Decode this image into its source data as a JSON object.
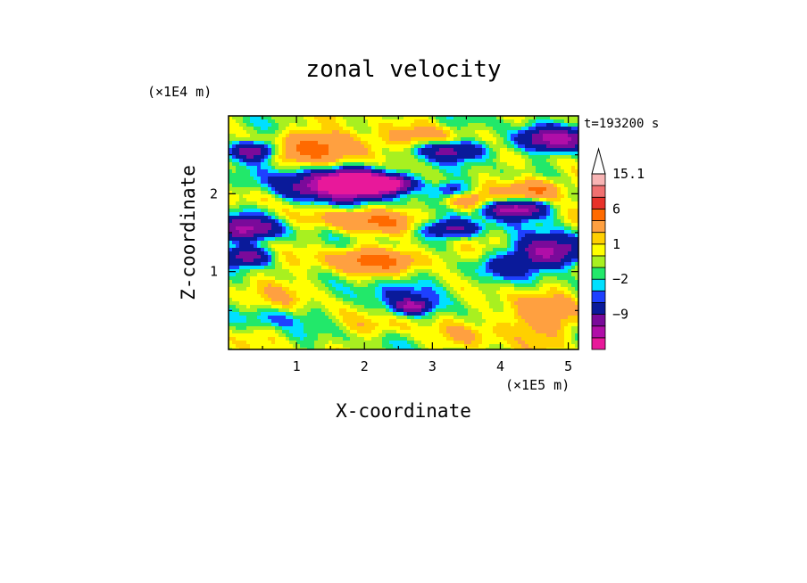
{
  "chart_data": {
    "type": "heatmap",
    "title": "zonal velocity",
    "xlabel": "X-coordinate",
    "ylabel": "Z-coordinate",
    "x_unit": "(×1E5 m)",
    "y_unit": "(×1E4 m)",
    "time_label": "t=193200 s",
    "xlim": [
      0,
      5.15
    ],
    "ylim": [
      0,
      3.0
    ],
    "x_ticks": [
      1,
      2,
      3,
      4,
      5
    ],
    "y_ticks": [
      1,
      2
    ],
    "x_tick_labels": [
      "1",
      "2",
      "3",
      "4",
      "5"
    ],
    "y_tick_labels": [
      "1",
      "2"
    ],
    "colorbar": {
      "levels": [
        -15,
        -12,
        -9,
        -6,
        -3,
        -2,
        -1,
        0,
        1,
        2,
        3,
        6,
        9,
        12,
        15.1
      ],
      "colors": [
        "#e8189a",
        "#b00ea8",
        "#7a0a9a",
        "#0a1a9a",
        "#1e40ff",
        "#00e0ff",
        "#22e86a",
        "#a8f020",
        "#ffff00",
        "#ffd000",
        "#ffa040",
        "#ff6a00",
        "#e8322a",
        "#f07070",
        "#f8b4b4"
      ],
      "labels": [
        "15.1",
        "6",
        "1",
        "−2",
        "−9"
      ],
      "label_values": [
        15.1,
        6,
        1,
        -2,
        -9
      ]
    },
    "features": [
      {
        "x": 1.55,
        "z": 2.1,
        "rx": 0.8,
        "rz": 0.2,
        "v": -11
      },
      {
        "x": 2.35,
        "z": 2.12,
        "rx": 0.35,
        "rz": 0.1,
        "v": -13
      },
      {
        "x": 1.9,
        "z": 2.15,
        "rx": 0.45,
        "rz": 0.14,
        "v": -14
      },
      {
        "x": 0.35,
        "z": 2.55,
        "rx": 0.35,
        "rz": 0.12,
        "v": -10
      },
      {
        "x": 0.3,
        "z": 1.55,
        "rx": 0.5,
        "rz": 0.15,
        "v": -10
      },
      {
        "x": 0.3,
        "z": 1.2,
        "rx": 0.35,
        "rz": 0.12,
        "v": -8
      },
      {
        "x": 3.3,
        "z": 1.55,
        "rx": 0.45,
        "rz": 0.12,
        "v": -8
      },
      {
        "x": 4.2,
        "z": 1.8,
        "rx": 0.45,
        "rz": 0.12,
        "v": -12
      },
      {
        "x": 4.75,
        "z": 1.25,
        "rx": 0.5,
        "rz": 0.2,
        "v": -11
      },
      {
        "x": 4.8,
        "z": 2.7,
        "rx": 0.55,
        "rz": 0.15,
        "v": -10
      },
      {
        "x": 3.3,
        "z": 2.55,
        "rx": 0.55,
        "rz": 0.12,
        "v": -7
      },
      {
        "x": 4.0,
        "z": 1.05,
        "rx": 0.4,
        "rz": 0.15,
        "v": -4
      },
      {
        "x": 2.6,
        "z": 0.7,
        "rx": 0.8,
        "rz": 0.22,
        "v": -3
      },
      {
        "x": 2.7,
        "z": 0.55,
        "rx": 0.25,
        "rz": 0.08,
        "v": -8
      },
      {
        "x": 0.6,
        "z": 0.4,
        "rx": 0.5,
        "rz": 0.12,
        "v": -2.5
      },
      {
        "x": 3.3,
        "z": 2.05,
        "rx": 0.25,
        "rz": 0.1,
        "v": -5
      },
      {
        "x": 1.4,
        "z": 2.6,
        "rx": 0.85,
        "rz": 0.2,
        "v": 6
      },
      {
        "x": 2.0,
        "z": 1.65,
        "rx": 0.9,
        "rz": 0.14,
        "v": 5
      },
      {
        "x": 2.2,
        "z": 1.15,
        "rx": 0.8,
        "rz": 0.15,
        "v": 6
      },
      {
        "x": 4.5,
        "z": 2.05,
        "rx": 0.4,
        "rz": 0.14,
        "v": 7
      },
      {
        "x": 3.5,
        "z": 1.9,
        "rx": 0.4,
        "rz": 0.12,
        "v": 4
      },
      {
        "x": 4.5,
        "z": 0.4,
        "rx": 0.6,
        "rz": 0.3,
        "v": 4
      },
      {
        "x": 3.0,
        "z": 2.75,
        "rx": 0.5,
        "rz": 0.12,
        "v": 2.5
      },
      {
        "x": 0.4,
        "z": 1.95,
        "rx": 0.4,
        "rz": 0.12,
        "v": 2
      },
      {
        "x": 1.0,
        "z": 0.75,
        "rx": 0.5,
        "rz": 0.2,
        "v": 2
      },
      {
        "x": 3.6,
        "z": 0.2,
        "rx": 0.5,
        "rz": 0.15,
        "v": 1.5
      },
      {
        "x": 0.9,
        "z": 2.0,
        "rx": 0.3,
        "rz": 0.12,
        "v": -1.5
      },
      {
        "x": 2.3,
        "z": 0.3,
        "rx": 0.5,
        "rz": 0.12,
        "v": 1.5
      }
    ]
  }
}
